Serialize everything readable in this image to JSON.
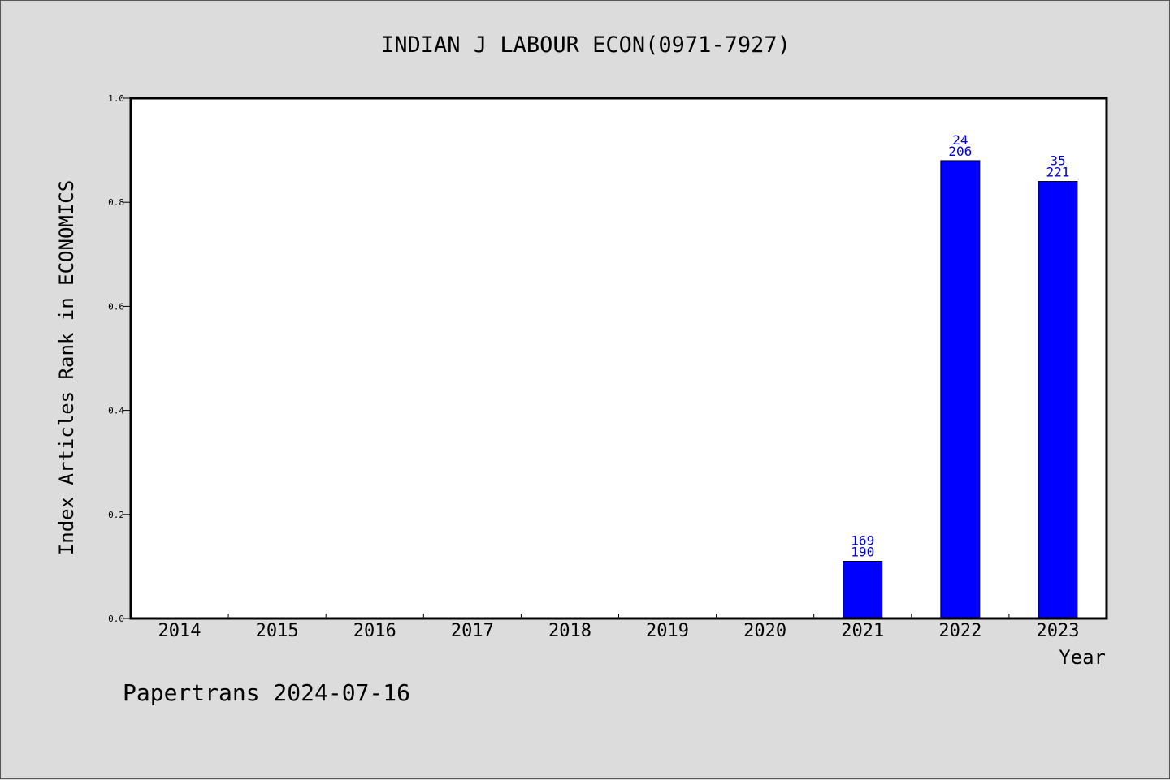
{
  "chart_data": {
    "type": "bar",
    "title": "INDIAN J LABOUR ECON(0971-7927)",
    "xlabel": "Year",
    "ylabel": "Index Articles Rank in ECONOMICS",
    "categories": [
      "2014",
      "2015",
      "2016",
      "2017",
      "2018",
      "2019",
      "2020",
      "2021",
      "2022",
      "2023"
    ],
    "values": [
      0,
      0,
      0,
      0,
      0,
      0,
      0,
      0.11,
      0.88,
      0.84
    ],
    "bar_labels": [
      null,
      null,
      null,
      null,
      null,
      null,
      null,
      [
        "169",
        "190"
      ],
      [
        "24",
        "206"
      ],
      [
        "35",
        "221"
      ]
    ],
    "ylim": [
      0,
      1.0
    ],
    "yticks": [
      "0.0",
      "0.2",
      "0.4",
      "0.6",
      "0.8",
      "1.0"
    ],
    "grid": false,
    "bar_color": "#0000ff",
    "label_color": "#0000cc",
    "footer": "Papertrans 2024-07-16"
  }
}
